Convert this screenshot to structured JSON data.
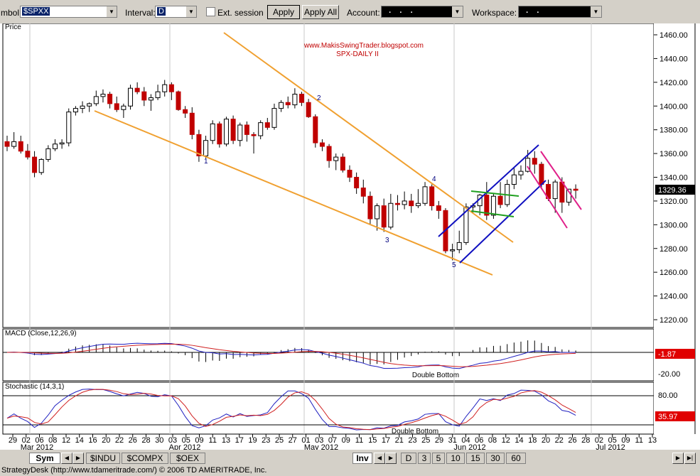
{
  "toolbar": {
    "symbol_label": "mbol:",
    "symbol_value": "$SPXX",
    "interval_label": "Interval:",
    "interval_value": "D",
    "ext_session_label": "Ext. session",
    "apply_label": "Apply",
    "apply_all_label": "Apply All",
    "account_label": "Account:",
    "account_value": "  .    .    .  ",
    "workspace_label": "Workspace:",
    "workspace_value": "  .    .  "
  },
  "price_panel": {
    "label": "Price",
    "source_line": "www.MakisSwingTrader.blogspot.com",
    "chart_title": "SPX-DAILY II",
    "price_ticks": [
      "1460.00",
      "1440.00",
      "1420.00",
      "1400.00",
      "1380.00",
      "1360.00",
      "1340.00",
      "1320.00",
      "1300.00",
      "1280.00",
      "1260.00",
      "1240.00",
      "1220.00"
    ],
    "last_price": "1329.36",
    "wave_labels": [
      "1",
      "2",
      "3",
      "4",
      "5"
    ]
  },
  "macd_panel": {
    "label": "MACD (Close,12,26,9)",
    "value": "-1.87",
    "tick": "-20.00",
    "annotation": "Double Bottom"
  },
  "stoch_panel": {
    "label": "Stochastic (14,3,1)",
    "value": "35.97",
    "tick": "80.00",
    "annotation": "Double Bottom"
  },
  "date_axis": {
    "days": [
      "29",
      "02",
      "06",
      "08",
      "12",
      "14",
      "16",
      "20",
      "22",
      "26",
      "28",
      "30",
      "03",
      "05",
      "09",
      "11",
      "13",
      "17",
      "19",
      "23",
      "25",
      "27",
      "01",
      "03",
      "07",
      "09",
      "11",
      "15",
      "17",
      "21",
      "23",
      "25",
      "29",
      "31",
      "04",
      "06",
      "08",
      "12",
      "14",
      "18",
      "20",
      "22",
      "26",
      "28",
      "02",
      "05",
      "09",
      "11",
      "13"
    ],
    "months": [
      "Mar 2012",
      "Apr 2012",
      "May 2012",
      "Jun 2012",
      "Jul 2012"
    ]
  },
  "bottom_tabs": {
    "sym": "Sym",
    "sheets": [
      "$INDU",
      "$COMPX",
      "$OEX"
    ],
    "inv": "Inv",
    "intervals": [
      "D",
      "3",
      "5",
      "10",
      "15",
      "30",
      "60"
    ]
  },
  "status_text": "StrategyDesk (http://www.tdameritrade.com/) © 2006 TD AMERITRADE, Inc.",
  "chart_data": {
    "type": "candlestick",
    "title": "SPX-DAILY II",
    "ylim": [
      1210,
      1475
    ],
    "candles": [
      [
        1370,
        1375,
        1362,
        1366
      ],
      [
        1366,
        1378,
        1364,
        1370
      ],
      [
        1370,
        1375,
        1360,
        1362
      ],
      [
        1362,
        1368,
        1355,
        1357
      ],
      [
        1357,
        1362,
        1340,
        1344
      ],
      [
        1344,
        1356,
        1342,
        1355
      ],
      [
        1355,
        1367,
        1353,
        1364
      ],
      [
        1364,
        1372,
        1362,
        1368
      ],
      [
        1368,
        1372,
        1364,
        1369
      ],
      [
        1369,
        1398,
        1366,
        1395
      ],
      [
        1395,
        1400,
        1392,
        1398
      ],
      [
        1398,
        1404,
        1394,
        1400
      ],
      [
        1400,
        1403,
        1395,
        1402
      ],
      [
        1402,
        1413,
        1400,
        1408
      ],
      [
        1408,
        1414,
        1403,
        1410
      ],
      [
        1410,
        1412,
        1398,
        1402
      ],
      [
        1402,
        1408,
        1395,
        1397
      ],
      [
        1397,
        1402,
        1390,
        1400
      ],
      [
        1400,
        1418,
        1397,
        1415
      ],
      [
        1415,
        1420,
        1410,
        1412
      ],
      [
        1412,
        1416,
        1400,
        1405
      ],
      [
        1405,
        1410,
        1396,
        1407
      ],
      [
        1407,
        1418,
        1405,
        1412
      ],
      [
        1412,
        1422,
        1408,
        1418
      ],
      [
        1418,
        1420,
        1405,
        1412
      ],
      [
        1412,
        1413,
        1396,
        1397
      ],
      [
        1397,
        1400,
        1390,
        1394
      ],
      [
        1394,
        1399,
        1372,
        1376
      ],
      [
        1376,
        1380,
        1353,
        1358
      ],
      [
        1358,
        1375,
        1356,
        1371
      ],
      [
        1371,
        1388,
        1368,
        1385
      ],
      [
        1385,
        1387,
        1365,
        1368
      ],
      [
        1368,
        1391,
        1366,
        1389
      ],
      [
        1389,
        1392,
        1368,
        1371
      ],
      [
        1371,
        1386,
        1366,
        1384
      ],
      [
        1384,
        1387,
        1370,
        1376
      ],
      [
        1376,
        1378,
        1360,
        1375
      ],
      [
        1375,
        1388,
        1372,
        1386
      ],
      [
        1386,
        1390,
        1380,
        1382
      ],
      [
        1382,
        1402,
        1380,
        1398
      ],
      [
        1398,
        1405,
        1395,
        1403
      ],
      [
        1403,
        1408,
        1398,
        1401
      ],
      [
        1401,
        1415,
        1398,
        1410
      ],
      [
        1410,
        1412,
        1400,
        1403
      ],
      [
        1403,
        1406,
        1390,
        1391
      ],
      [
        1391,
        1393,
        1365,
        1369
      ],
      [
        1369,
        1372,
        1362,
        1366
      ],
      [
        1366,
        1368,
        1348,
        1354
      ],
      [
        1354,
        1360,
        1346,
        1357
      ],
      [
        1357,
        1360,
        1344,
        1346
      ],
      [
        1346,
        1350,
        1336,
        1340
      ],
      [
        1340,
        1344,
        1326,
        1331
      ],
      [
        1331,
        1338,
        1318,
        1324
      ],
      [
        1324,
        1328,
        1300,
        1305
      ],
      [
        1305,
        1318,
        1295,
        1316
      ],
      [
        1316,
        1322,
        1294,
        1298
      ],
      [
        1298,
        1326,
        1296,
        1318
      ],
      [
        1318,
        1325,
        1312,
        1317
      ],
      [
        1317,
        1328,
        1313,
        1320
      ],
      [
        1320,
        1326,
        1310,
        1316
      ],
      [
        1316,
        1330,
        1314,
        1318
      ],
      [
        1318,
        1336,
        1316,
        1332
      ],
      [
        1332,
        1334,
        1312,
        1316
      ],
      [
        1316,
        1320,
        1305,
        1312
      ],
      [
        1312,
        1314,
        1276,
        1278
      ],
      [
        1278,
        1284,
        1270,
        1279
      ],
      [
        1279,
        1295,
        1276,
        1285
      ],
      [
        1285,
        1318,
        1283,
        1315
      ],
      [
        1315,
        1318,
        1310,
        1316
      ],
      [
        1316,
        1326,
        1308,
        1325
      ],
      [
        1325,
        1336,
        1304,
        1308
      ],
      [
        1308,
        1326,
        1305,
        1324
      ],
      [
        1324,
        1336,
        1314,
        1317
      ],
      [
        1317,
        1338,
        1315,
        1334
      ],
      [
        1334,
        1348,
        1330,
        1342
      ],
      [
        1342,
        1350,
        1338,
        1345
      ],
      [
        1345,
        1363,
        1344,
        1356
      ],
      [
        1356,
        1362,
        1343,
        1351
      ],
      [
        1351,
        1353,
        1330,
        1334
      ],
      [
        1334,
        1338,
        1320,
        1322
      ],
      [
        1322,
        1338,
        1310,
        1336
      ],
      [
        1336,
        1340,
        1310,
        1319
      ],
      [
        1319,
        1330,
        1316,
        1330
      ],
      [
        1330,
        1334,
        1322,
        1329
      ]
    ]
  }
}
